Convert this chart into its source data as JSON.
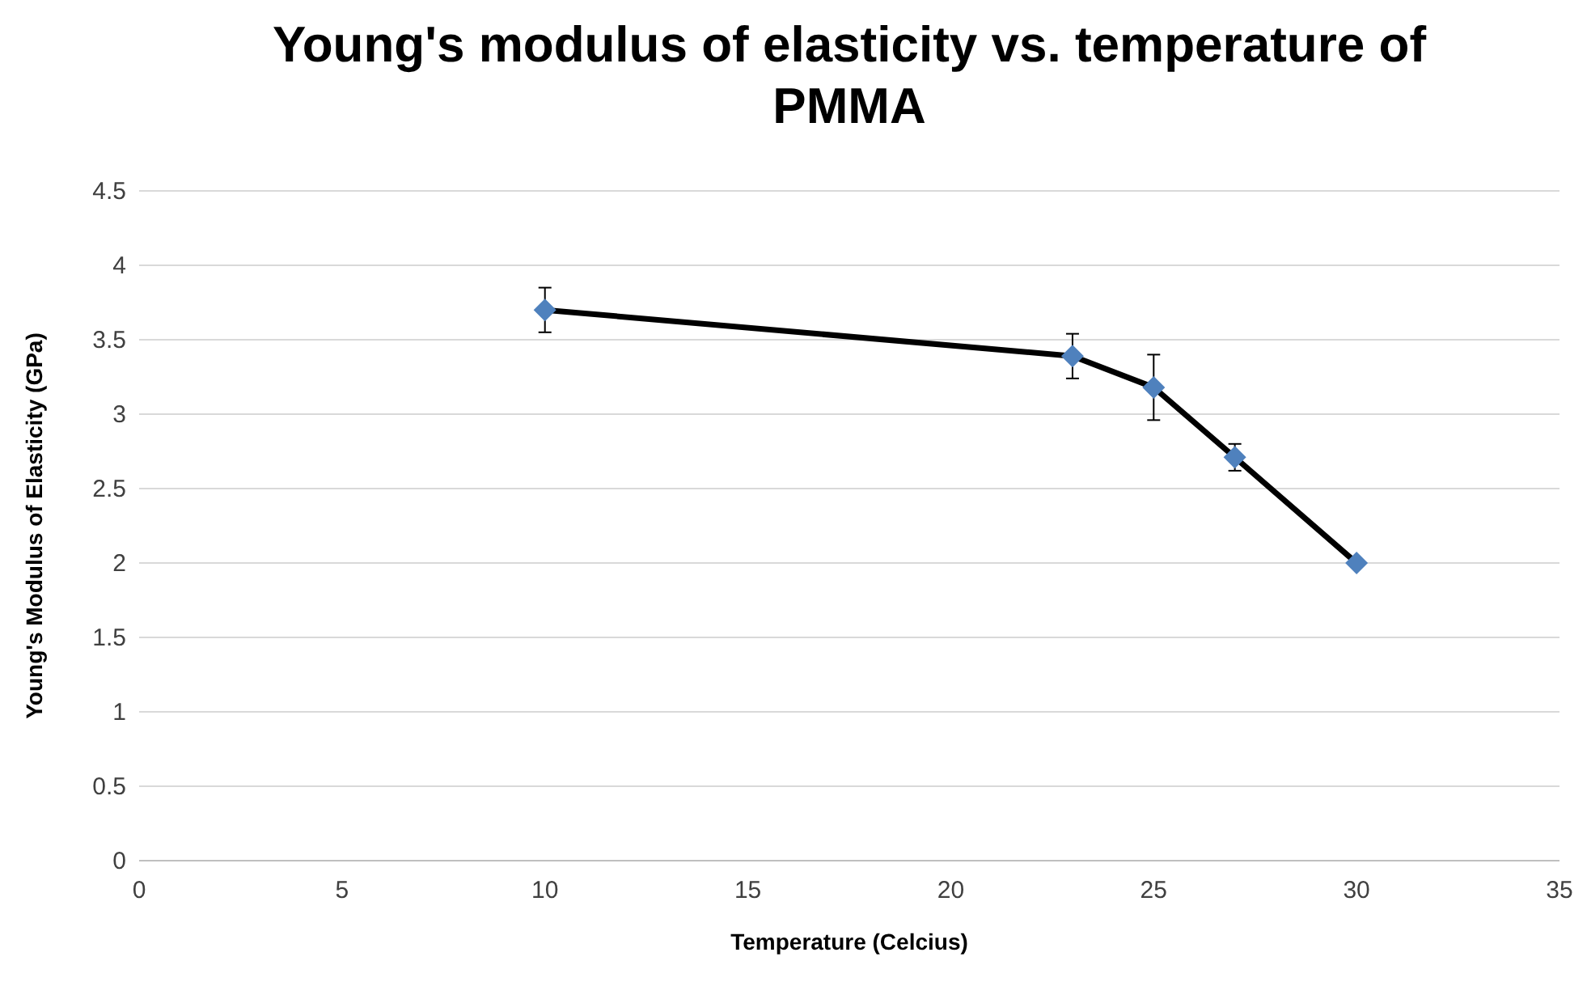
{
  "chart_data": {
    "type": "line",
    "title": "Young's modulus of elasticity vs. temperature of PMMA",
    "xlabel": "Temperature (Celcius)",
    "ylabel": "Young's Modulus of Elasticity (GPa)",
    "x": [
      10,
      23,
      25,
      27,
      30
    ],
    "series": [
      {
        "color": "#4f81bd",
        "values": [
          3.7,
          3.39,
          3.18,
          2.71,
          2.0
        ],
        "errors": [
          0.15,
          0.15,
          0.22,
          0.09,
          null
        ]
      }
    ],
    "xlim": [
      0,
      35
    ],
    "xticks": [
      0,
      5,
      10,
      15,
      20,
      25,
      30,
      35
    ],
    "ylim": [
      0,
      4.5
    ],
    "yticks": [
      0,
      0.5,
      1,
      1.5,
      2,
      2.5,
      3,
      3.5,
      4,
      4.5
    ],
    "grid": "y",
    "marker": "diamond",
    "line_style": "solid"
  }
}
